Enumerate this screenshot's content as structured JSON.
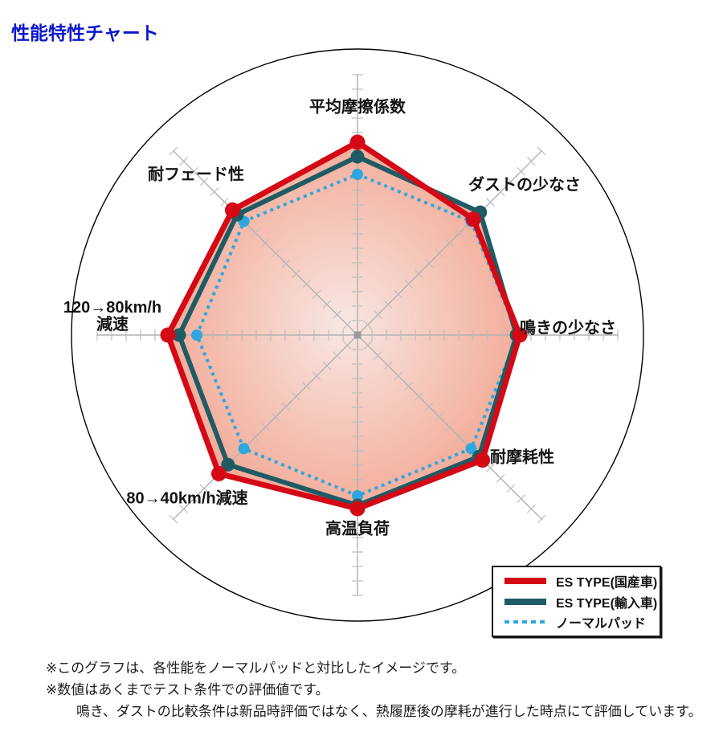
{
  "page": {
    "title": "性能特性チャート",
    "title_color": "#0b16d0",
    "background_color": "#ffffff"
  },
  "chart_data": {
    "type": "radar",
    "title": "性能特性チャート",
    "axes": [
      {
        "id": "avg-friction",
        "label": "平均摩擦係数",
        "angle_deg": 90
      },
      {
        "id": "low-dust",
        "label": "ダストの少なさ",
        "angle_deg": 45
      },
      {
        "id": "low-squeal",
        "label": "鳴きの少なさ",
        "angle_deg": 0
      },
      {
        "id": "wear-resistance",
        "label": "耐摩耗性",
        "angle_deg": -45
      },
      {
        "id": "high-temp-load",
        "label": "高温負荷",
        "angle_deg": -90
      },
      {
        "id": "decel-80-40",
        "label": "80→40km/h減速",
        "angle_deg": -135
      },
      {
        "id": "decel-120-80",
        "label": "120→80km/h減速",
        "label_lines": [
          "120→80km/h",
          "減速"
        ],
        "angle_deg": 180
      },
      {
        "id": "fade-resistance",
        "label": "耐フェード性",
        "angle_deg": 135
      }
    ],
    "series": [
      {
        "name": "ES TYPE(国産車)",
        "color": "#d40915",
        "line_style": "solid",
        "values": [
          6.0,
          5.1,
          5.05,
          5.5,
          5.4,
          6.1,
          5.9,
          5.5
        ]
      },
      {
        "name": "ES TYPE(輸入車)",
        "color": "#1e5b65",
        "line_style": "solid",
        "values": [
          5.55,
          5.4,
          4.95,
          5.35,
          5.3,
          5.7,
          5.55,
          5.3
        ]
      },
      {
        "name": "ノーマルパッド",
        "color": "#2ea7df",
        "line_style": "dashed",
        "values": [
          5,
          5,
          5,
          5,
          5,
          5,
          5,
          5
        ]
      }
    ],
    "scale": {
      "min": 0,
      "max": 8.1,
      "normal_pad_baseline": 5,
      "numeric_labels_visible": false,
      "grid": "tick-marks-on-axes",
      "outer_boundary": "circle"
    },
    "fill": {
      "center_color": "#f8e7e3",
      "edge_color": "#f2a48f"
    },
    "axis_color": "#b1b1b1",
    "tick_color": "#bdbdbd",
    "outer_circle_color": "#000000",
    "legend_position": "bottom-right"
  },
  "legend": {
    "items": [
      {
        "label": "ES TYPE(国産車)",
        "color": "#d40915",
        "line_style": "solid"
      },
      {
        "label": "ES TYPE(輸入車)",
        "color": "#1e5b65",
        "line_style": "solid"
      },
      {
        "label": "ノーマルパッド",
        "color": "#2ea7df",
        "line_style": "dashed"
      }
    ]
  },
  "footnotes": [
    "※このグラフは、各性能をノーマルパッドと対比したイメージです。",
    "※数値はあくまでテスト条件での評価値です。",
    "鳴き、ダストの比較条件は新品時評価ではなく、熱履歴後の摩耗が進行した時点にて評価しています。"
  ]
}
